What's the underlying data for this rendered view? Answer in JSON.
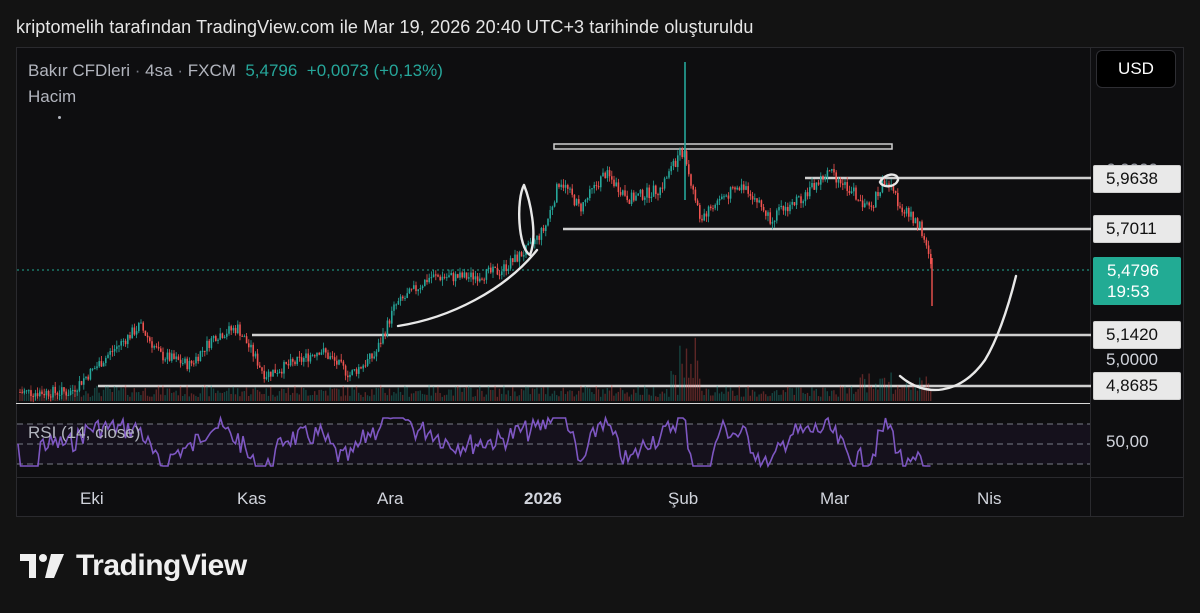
{
  "caption": "kriptomelih tarafından TradingView.com ile Mar 19, 2026 20:40 UTC+3 tarihinde oluşturuldu",
  "legend": {
    "symbol": "Bakır CFDleri",
    "interval": "4sa",
    "exchange": "FXCM",
    "dot": "·",
    "last": "5,4796",
    "change": "+0,0073 (+0,13%)",
    "volume_label": "Hacim"
  },
  "currency_button": "USD",
  "price_tags": {
    "level_1": "5,9638",
    "level_1_hidden": "6,0000",
    "level_2": "5,7011",
    "current": "5,4796",
    "countdown": "19:53",
    "level_3": "5,1420",
    "level_4": "5,0000",
    "level_5": "4,8685"
  },
  "rsi": {
    "label": "RSI (14, close)",
    "axis_value": "50,00"
  },
  "time_axis": [
    "Eki",
    "Kas",
    "Ara",
    "2026",
    "Şub",
    "Mar",
    "Nis"
  ],
  "logo": {
    "text": "TradingView"
  },
  "colors": {
    "background": "#131313",
    "up": "#26a69a",
    "down": "#ef5350",
    "rsi_line": "#7e57c2",
    "current_price": "#22ab94",
    "drawing": "#e6e6e6"
  },
  "chart_data": {
    "type": "candlestick",
    "symbol": "Bakır CFDleri",
    "interval": "4sa",
    "currency": "USD",
    "last_price": 5.4796,
    "change": 0.0073,
    "change_pct": 0.13,
    "y_range": [
      4.82,
      6.55
    ],
    "horizontal_levels": [
      5.9638,
      5.7011,
      5.142,
      4.8685
    ],
    "resistance_zone": 6.0,
    "x_labels": [
      "Eki",
      "Kas",
      "Ara",
      "2026",
      "Şub",
      "Mar",
      "Nis"
    ],
    "close_path": [
      {
        "x": "Eki",
        "y": 4.88
      },
      {
        "x": "Kas",
        "y": 5.1
      },
      {
        "x": "Ara",
        "y": 5.18
      },
      {
        "x": "2026",
        "y": 5.95
      },
      {
        "x": "Şub",
        "y": 5.85
      },
      {
        "x": "Mar",
        "y": 5.98
      },
      {
        "x": "Mar",
        "y": 5.4796
      }
    ],
    "rsi_period": 14,
    "rsi_reference": 50
  }
}
